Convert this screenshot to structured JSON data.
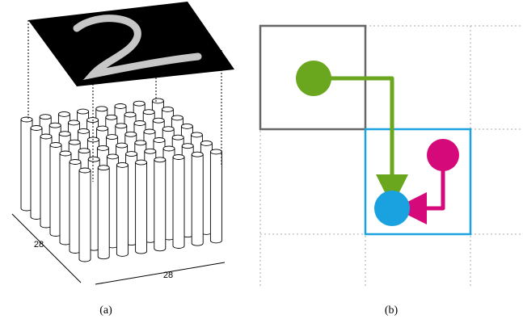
{
  "panels": [
    {
      "label": "(a)",
      "depth_label": "28",
      "width_label": "28"
    },
    {
      "label": "(b)"
    }
  ]
}
